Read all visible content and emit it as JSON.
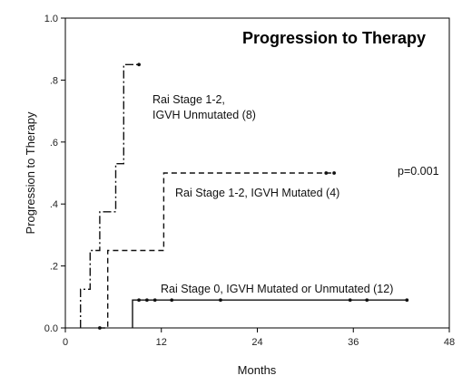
{
  "chart_data": {
    "type": "line",
    "title": "Progression to Therapy",
    "xlabel": "Months",
    "ylabel": "Progression to Therapy",
    "xlim": [
      0,
      48
    ],
    "ylim": [
      0,
      1.0
    ],
    "x_ticks": [
      0,
      12,
      24,
      36,
      48
    ],
    "y_ticks": [
      {
        "value": 0.0,
        "label": "0.0"
      },
      {
        "value": 0.2,
        "label": ".2"
      },
      {
        "value": 0.4,
        "label": ".4"
      },
      {
        "value": 0.6,
        "label": ".6"
      },
      {
        "value": 0.8,
        "label": ".8"
      },
      {
        "value": 1.0,
        "label": "1.0"
      }
    ],
    "grid": false,
    "legend": "none",
    "series": [
      {
        "line_style": "dashdot",
        "steps": [
          [
            1.9,
            0.0
          ],
          [
            1.9,
            0.125
          ],
          [
            3.1,
            0.125
          ],
          [
            3.1,
            0.25
          ],
          [
            4.3,
            0.25
          ],
          [
            4.3,
            0.375
          ],
          [
            6.3,
            0.375
          ],
          [
            6.3,
            0.53
          ],
          [
            7.3,
            0.53
          ],
          [
            7.3,
            0.85
          ],
          [
            9.2,
            0.85
          ]
        ],
        "censored": [
          [
            9.2,
            0.85
          ]
        ]
      },
      {
        "line_style": "dashed",
        "steps": [
          [
            4.3,
            0.0
          ],
          [
            5.3,
            0.0
          ],
          [
            5.3,
            0.25
          ],
          [
            12.3,
            0.25
          ],
          [
            12.3,
            0.5
          ],
          [
            33.6,
            0.5
          ]
        ],
        "censored": [
          [
            4.3,
            0.0
          ],
          [
            32.6,
            0.5
          ],
          [
            33.6,
            0.5
          ]
        ]
      },
      {
        "line_style": "solid",
        "steps": [
          [
            8.4,
            0.0
          ],
          [
            8.4,
            0.09
          ],
          [
            42.7,
            0.09
          ]
        ],
        "censored": [
          [
            9.2,
            0.09
          ],
          [
            10.2,
            0.09
          ],
          [
            11.2,
            0.09
          ],
          [
            13.3,
            0.09
          ],
          [
            19.4,
            0.09
          ],
          [
            35.6,
            0.09
          ],
          [
            37.7,
            0.09
          ],
          [
            42.7,
            0.09
          ]
        ]
      }
    ],
    "annotations": [
      {
        "id": "unmutated_line1",
        "text": "Rai Stage 1-2,"
      },
      {
        "id": "unmutated_line2",
        "text": "IGVH Unmutated (8)"
      },
      {
        "id": "mutated",
        "text": "Rai Stage 1-2, IGVH Mutated (4)"
      },
      {
        "id": "stage0",
        "text": "Rai Stage 0, IGVH Mutated or Unmutated (12)"
      },
      {
        "id": "pvalue",
        "text": "p=0.001"
      }
    ]
  }
}
